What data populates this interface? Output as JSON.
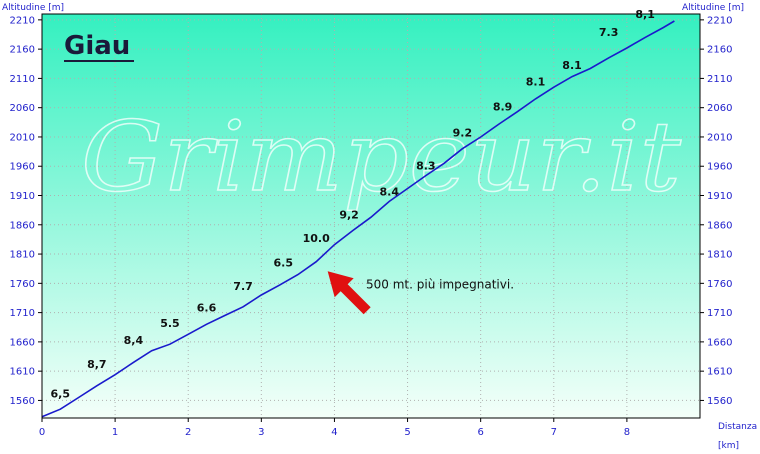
{
  "chart_data": {
    "type": "line",
    "title": "Giau",
    "watermark": "Grimpeur.it",
    "ylabel_left": "Altitudine [m]",
    "ylabel_right": "Altitudine [m]",
    "xlabel": "Distanza",
    "xunit": "[km]",
    "xlim": [
      0,
      9
    ],
    "ylim": [
      1530,
      2220
    ],
    "xticks": [
      0,
      1,
      2,
      3,
      4,
      5,
      6,
      7,
      8
    ],
    "yticks": [
      1560,
      1610,
      1660,
      1710,
      1760,
      1810,
      1860,
      1910,
      1960,
      2010,
      2060,
      2110,
      2160,
      2210
    ],
    "grid": true,
    "series": [
      {
        "x": [
          0,
          0.25,
          0.5,
          0.75,
          1.0,
          1.25,
          1.5,
          1.75,
          2.0,
          2.25,
          2.5,
          2.75,
          3.0,
          3.25,
          3.5,
          3.75,
          4.0,
          4.25,
          4.5,
          4.75,
          5.0,
          5.25,
          5.5,
          5.75,
          6.0,
          6.25,
          6.5,
          6.75,
          7.0,
          7.25,
          7.5,
          7.75,
          8.0,
          8.25,
          8.5,
          8.65
        ],
        "y": [
          1532,
          1545,
          1565,
          1585,
          1604,
          1625,
          1645,
          1656,
          1673,
          1690,
          1705,
          1720,
          1740,
          1757,
          1775,
          1797,
          1826,
          1850,
          1873,
          1900,
          1922,
          1944,
          1965,
          1990,
          2010,
          2032,
          2053,
          2075,
          2095,
          2113,
          2127,
          2145,
          2162,
          2180,
          2197,
          2208
        ]
      }
    ],
    "annotations": [
      {
        "text": "6,5",
        "x": 0.25,
        "y": 1565
      },
      {
        "text": "8,7",
        "x": 0.75,
        "y": 1615
      },
      {
        "text": "8,4",
        "x": 1.25,
        "y": 1656
      },
      {
        "text": "5.5",
        "x": 1.75,
        "y": 1685
      },
      {
        "text": "6.6",
        "x": 2.25,
        "y": 1712
      },
      {
        "text": "7.7",
        "x": 2.75,
        "y": 1749
      },
      {
        "text": "6.5",
        "x": 3.3,
        "y": 1789
      },
      {
        "text": "10.0",
        "x": 3.75,
        "y": 1831
      },
      {
        "text": "9,2",
        "x": 4.2,
        "y": 1871
      },
      {
        "text": "8.4",
        "x": 4.75,
        "y": 1910
      },
      {
        "text": "8.3",
        "x": 5.25,
        "y": 1954
      },
      {
        "text": "9.2",
        "x": 5.75,
        "y": 2011
      },
      {
        "text": "8.9",
        "x": 6.3,
        "y": 2055
      },
      {
        "text": "8.1",
        "x": 6.75,
        "y": 2098
      },
      {
        "text": "8.1",
        "x": 7.25,
        "y": 2126
      },
      {
        "text": "7.3",
        "x": 7.75,
        "y": 2182
      },
      {
        "text": "8,1",
        "x": 8.25,
        "y": 2213
      }
    ],
    "callout": {
      "text": "500 mt. più impegnativi.",
      "target_x": 3.88,
      "target_y": 1784,
      "arrow_color": "#e01010"
    },
    "colors": {
      "line": "#1a1acc",
      "axis_text": "#2222cc",
      "grid": "#b0b0b0",
      "bg_top": "#34f0c0",
      "bg_bottom": "#f4fff9"
    }
  }
}
